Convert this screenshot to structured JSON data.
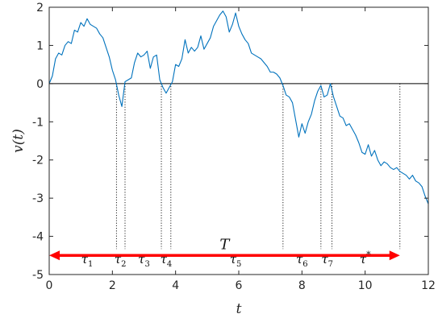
{
  "chart_data": {
    "type": "line",
    "title": "",
    "xlabel": "t",
    "ylabel": "v(t)",
    "xlim": [
      0,
      12
    ],
    "ylim": [
      -5,
      2
    ],
    "xticks": [
      "0",
      "2",
      "4",
      "6",
      "8",
      "10",
      "12"
    ],
    "yticks": [
      "2",
      "1",
      "0",
      "-1",
      "-2",
      "-3",
      "-4",
      "-5"
    ],
    "grid": false,
    "legend": "none",
    "series": [
      {
        "color": "#0072bd",
        "x": [
          0,
          0.1,
          0.2,
          0.3,
          0.4,
          0.5,
          0.6,
          0.7,
          0.8,
          0.9,
          1.0,
          1.1,
          1.2,
          1.3,
          1.4,
          1.5,
          1.6,
          1.7,
          1.8,
          1.9,
          2.0,
          2.1,
          2.2,
          2.3,
          2.4,
          2.5,
          2.6,
          2.7,
          2.8,
          2.9,
          3.0,
          3.1,
          3.2,
          3.3,
          3.4,
          3.5,
          3.6,
          3.7,
          3.8,
          3.9,
          4.0,
          4.1,
          4.2,
          4.3,
          4.4,
          4.5,
          4.6,
          4.7,
          4.8,
          4.9,
          5.0,
          5.1,
          5.2,
          5.3,
          5.4,
          5.5,
          5.6,
          5.7,
          5.8,
          5.9,
          6.0,
          6.1,
          6.2,
          6.3,
          6.4,
          6.5,
          6.6,
          6.7,
          6.8,
          6.9,
          7.0,
          7.1,
          7.2,
          7.3,
          7.4,
          7.5,
          7.6,
          7.7,
          7.8,
          7.9,
          8.0,
          8.1,
          8.2,
          8.3,
          8.4,
          8.5,
          8.6,
          8.7,
          8.8,
          8.9,
          9.0,
          9.1,
          9.2,
          9.3,
          9.4,
          9.5,
          9.6,
          9.7,
          9.8,
          9.9,
          10.0,
          10.1,
          10.2,
          10.3,
          10.4,
          10.5,
          10.6,
          10.7,
          10.8,
          10.9,
          11.0,
          11.1,
          11.2,
          11.3,
          11.4,
          11.5,
          11.6,
          11.7,
          11.8,
          11.9,
          12.0
        ],
        "y": [
          0,
          0.2,
          0.65,
          0.8,
          0.75,
          1.0,
          1.1,
          1.05,
          1.4,
          1.35,
          1.6,
          1.5,
          1.7,
          1.55,
          1.5,
          1.45,
          1.3,
          1.2,
          0.95,
          0.7,
          0.35,
          0.1,
          -0.3,
          -0.6,
          0.05,
          0.1,
          0.15,
          0.55,
          0.8,
          0.7,
          0.75,
          0.85,
          0.4,
          0.7,
          0.75,
          0.1,
          -0.1,
          -0.25,
          -0.1,
          0.05,
          0.5,
          0.45,
          0.65,
          1.15,
          0.8,
          0.95,
          0.85,
          0.95,
          1.25,
          0.9,
          1.05,
          1.2,
          1.5,
          1.65,
          1.8,
          1.9,
          1.75,
          1.35,
          1.55,
          1.85,
          1.5,
          1.3,
          1.15,
          1.05,
          0.8,
          0.75,
          0.7,
          0.65,
          0.55,
          0.45,
          0.3,
          0.3,
          0.25,
          0.15,
          -0.05,
          -0.3,
          -0.35,
          -0.5,
          -0.95,
          -1.4,
          -1.05,
          -1.3,
          -1.0,
          -0.8,
          -0.45,
          -0.2,
          -0.05,
          -0.35,
          -0.3,
          0.0,
          -0.35,
          -0.6,
          -0.85,
          -0.9,
          -1.1,
          -1.05,
          -1.2,
          -1.35,
          -1.55,
          -1.8,
          -1.85,
          -1.6,
          -1.9,
          -1.75,
          -2.0,
          -2.15,
          -2.05,
          -2.1,
          -2.2,
          -2.25,
          -2.2,
          -2.3,
          -2.35,
          -2.4,
          -2.5,
          -2.4,
          -2.55,
          -2.6,
          -2.7,
          -2.95,
          -3.15
        ]
      }
    ],
    "reference_line": {
      "y": 0,
      "color": "#000000"
    },
    "crossing_times": [
      2.13,
      2.4,
      3.55,
      3.85,
      7.4,
      8.6,
      8.95,
      11.1
    ],
    "annotations": {
      "interval_label": "T",
      "interval_start": 0,
      "interval_end": 11.1,
      "interval_y": -4.5,
      "interval_color": "#ff0000",
      "tau_labels": [
        {
          "base": "τ",
          "sub": "1",
          "sup": "",
          "x": 1.2
        },
        {
          "base": "τ",
          "sub": "2",
          "sup": "",
          "x": 2.25
        },
        {
          "base": "τ",
          "sub": "3",
          "sup": "",
          "x": 3.0
        },
        {
          "base": "τ",
          "sub": "4",
          "sup": "",
          "x": 3.7
        },
        {
          "base": "τ",
          "sub": "5",
          "sup": "",
          "x": 5.9
        },
        {
          "base": "τ",
          "sub": "6",
          "sup": "",
          "x": 8.0
        },
        {
          "base": "τ",
          "sub": "7",
          "sup": "",
          "x": 8.8
        },
        {
          "base": "τ",
          "sub": "",
          "sup": "*",
          "x": 10.0
        }
      ],
      "tau_label_y": -4.7
    }
  }
}
